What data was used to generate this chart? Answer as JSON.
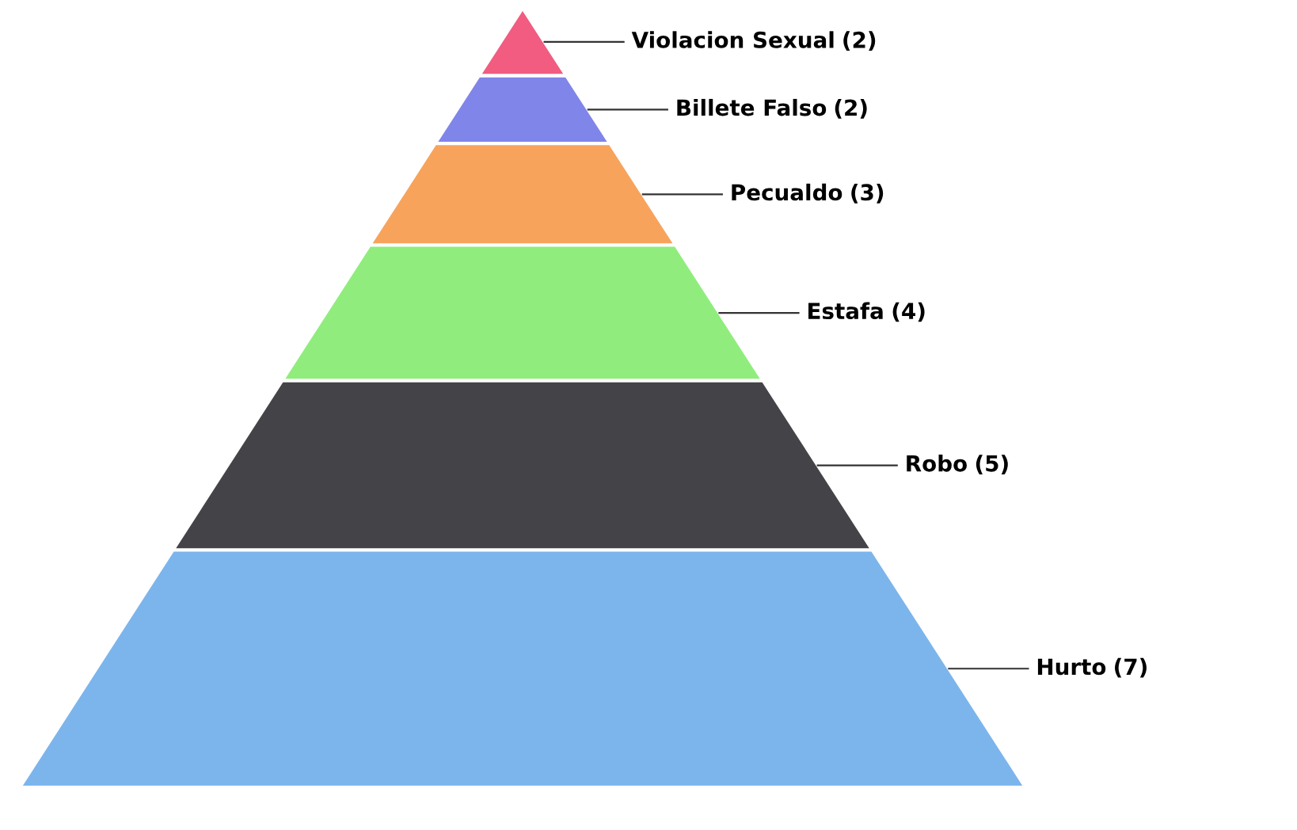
{
  "chart_data": {
    "type": "other",
    "categories": [
      "Violacion Sexual",
      "Billete Falso",
      "Pecualdo",
      "Estafa",
      "Robo",
      "Hurto"
    ],
    "values": [
      2,
      2,
      3,
      4,
      5,
      7
    ],
    "value_labels": [
      "(2)",
      "(2)",
      "(3)",
      "(4)",
      "(5)",
      "(7)"
    ],
    "colors": [
      "#f15c80",
      "#8085e9",
      "#f7a35c",
      "#90ed7d",
      "#434348",
      "#7cb5ec"
    ]
  }
}
